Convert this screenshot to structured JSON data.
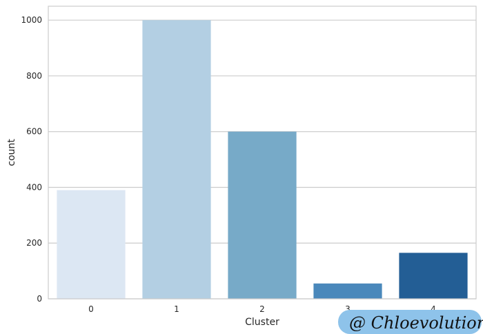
{
  "chart_data": {
    "type": "bar",
    "xlabel": "Cluster",
    "ylabel": "count",
    "categories": [
      "0",
      "1",
      "2",
      "3",
      "4"
    ],
    "values": [
      390,
      1000,
      600,
      55,
      165
    ],
    "ylim": [
      0,
      1050
    ],
    "yticks": [
      0,
      200,
      400,
      600,
      800,
      1000
    ],
    "grid": true,
    "colors": [
      "#dce7f3",
      "#b3cfe3",
      "#77aac8",
      "#4a88bb",
      "#235e95"
    ]
  },
  "watermark": {
    "text": "@ Chloevolution",
    "color": "#8ec3ea"
  }
}
